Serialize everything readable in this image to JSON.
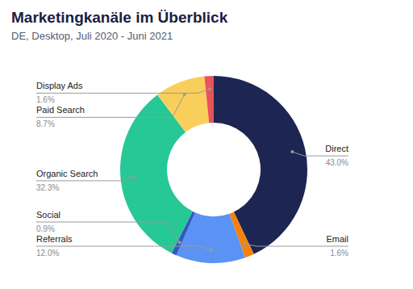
{
  "chart_data": {
    "type": "donut",
    "title": "Marketingkanäle im Überblick",
    "subtitle": "DE, Desktop, Juli 2020 - Juni 2021",
    "categories": [
      "Direct",
      "Email",
      "Referrals",
      "Social",
      "Organic Search",
      "Paid Search",
      "Display Ads"
    ],
    "values": [
      43.0,
      1.6,
      12.0,
      0.9,
      32.3,
      8.7,
      1.6
    ],
    "value_labels": [
      "43.0%",
      "1.6%",
      "12.0%",
      "0.9%",
      "32.3%",
      "8.7%",
      "1.6%"
    ],
    "colors": [
      "#1d2552",
      "#f5820d",
      "#5a93f3",
      "#3557c4",
      "#26c895",
      "#f9cf5b",
      "#e6535a"
    ],
    "data_labels": true
  }
}
